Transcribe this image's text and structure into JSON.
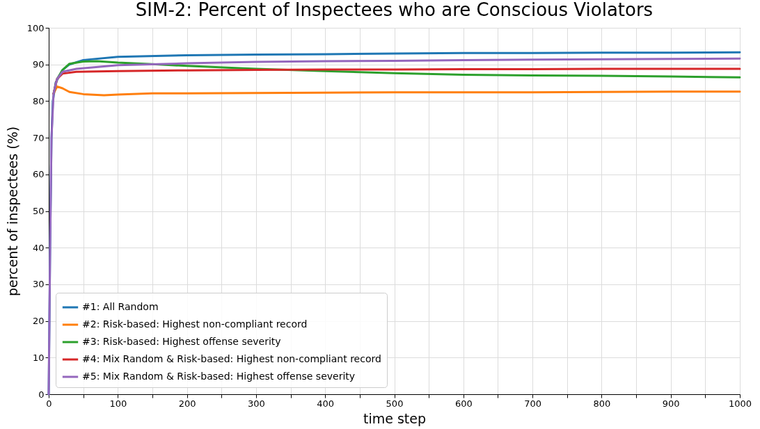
{
  "chart_data": {
    "type": "line",
    "title": "SIM-2: Percent of Inspectees who are Conscious Violators",
    "xlabel": "time step",
    "ylabel": "percent of inspectees (%)",
    "xlim": [
      0,
      1000
    ],
    "ylim": [
      0,
      100
    ],
    "xticks": [
      0,
      {
        "value": 50,
        "label": null
      },
      100,
      {
        "value": 150,
        "label": null
      },
      200,
      {
        "value": 250,
        "label": null
      },
      300,
      {
        "value": 350,
        "label": null
      },
      400,
      {
        "value": 450,
        "label": null
      },
      500,
      {
        "value": 550,
        "label": null
      },
      600,
      {
        "value": 650,
        "label": null
      },
      700,
      {
        "value": 750,
        "label": null
      },
      800,
      {
        "value": 850,
        "label": null
      },
      900,
      {
        "value": 950,
        "label": null
      },
      1000
    ],
    "yticks": [
      0,
      10,
      20,
      30,
      40,
      50,
      60,
      70,
      80,
      90,
      100
    ],
    "grid": true,
    "legend": "bottom left",
    "marker": "none",
    "line_style": "solid",
    "series": [
      {
        "name": "#1: All Random",
        "color": "#1f77b4",
        "x": [
          0,
          2,
          4,
          6,
          10,
          20,
          30,
          50,
          100,
          200,
          300,
          400,
          500,
          600,
          700,
          800,
          900,
          1000
        ],
        "values": [
          0,
          40,
          70,
          80,
          85,
          88.5,
          90,
          91.2,
          92.1,
          92.5,
          92.7,
          92.8,
          93.0,
          93.1,
          93.1,
          93.2,
          93.2,
          93.3
        ]
      },
      {
        "name": "#2: Risk-based: Highest non-compliant record",
        "color": "#ff7f0e",
        "x": [
          7,
          12,
          20,
          30,
          50,
          80,
          100,
          150,
          200,
          300,
          400,
          500,
          600,
          700,
          800,
          900,
          1000
        ],
        "values": [
          82,
          84,
          83.5,
          82.5,
          81.9,
          81.6,
          81.8,
          82.1,
          82.1,
          82.2,
          82.3,
          82.4,
          82.4,
          82.4,
          82.5,
          82.6,
          82.6
        ]
      },
      {
        "name": "#3: Risk-based: Highest offense severity",
        "color": "#2ca02c",
        "x": [
          7,
          12,
          20,
          30,
          50,
          70,
          100,
          150,
          200,
          300,
          400,
          500,
          600,
          700,
          800,
          900,
          1000
        ],
        "values": [
          82,
          86,
          88.5,
          90.2,
          90.8,
          90.9,
          90.5,
          90.1,
          89.6,
          88.8,
          88.2,
          87.6,
          87.2,
          87,
          86.9,
          86.7,
          86.5
        ]
      },
      {
        "name": "#4: Mix Random & Risk-based: Highest non-compliant record",
        "color": "#d62728",
        "x": [
          7,
          12,
          20,
          40,
          100,
          200,
          300,
          400,
          500,
          600,
          700,
          800,
          900,
          1000
        ],
        "values": [
          82,
          86,
          87.5,
          88,
          88.2,
          88.4,
          88.5,
          88.6,
          88.6,
          88.7,
          88.7,
          88.8,
          88.8,
          88.8
        ]
      },
      {
        "name": "#5: Mix Random & Risk-based: Highest offense severity",
        "color": "#9467bd",
        "x": [
          0,
          2,
          4,
          7,
          12,
          20,
          40,
          100,
          200,
          300,
          400,
          500,
          600,
          700,
          800,
          900,
          1000
        ],
        "values": [
          0,
          40,
          70,
          82,
          86,
          88,
          88.8,
          89.8,
          90.3,
          90.7,
          90.9,
          91.0,
          91.2,
          91.3,
          91.4,
          91.5,
          91.6
        ]
      }
    ]
  }
}
